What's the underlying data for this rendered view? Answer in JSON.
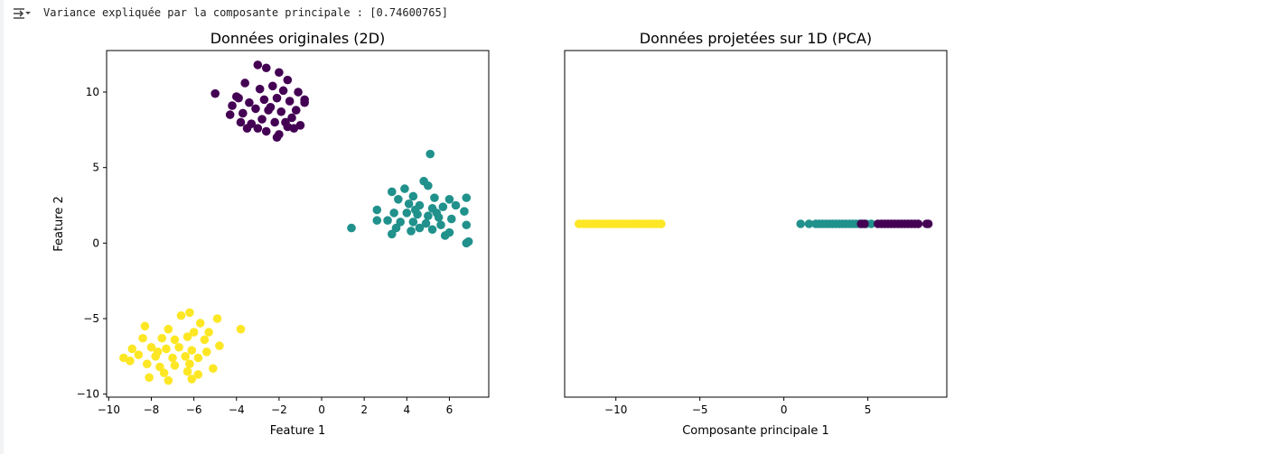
{
  "output": {
    "icon": "output-collapse-icon",
    "text": "Variance expliquée par la composante principale : [0.74600765]"
  },
  "colors": {
    "purple": "#440154",
    "teal": "#21918c",
    "yellow": "#fde725"
  },
  "chart_data": [
    {
      "type": "scatter",
      "title": "Données originales (2D)",
      "xlabel": "Feature 1",
      "ylabel": "Feature 2",
      "xlim": [
        -10.1,
        7.85
      ],
      "ylim": [
        -10.2,
        12.75
      ],
      "xticks": [
        "−10",
        "−8",
        "−6",
        "−4",
        "−2",
        "0",
        "2",
        "4",
        "6"
      ],
      "xtick_values": [
        -10,
        -8,
        -6,
        -4,
        -2,
        0,
        2,
        4,
        6
      ],
      "yticks": [
        "−10",
        "−5",
        "0",
        "5",
        "10"
      ],
      "ytick_values": [
        -10,
        -5,
        0,
        5,
        10
      ],
      "grid": false,
      "series": [
        {
          "color": "purple",
          "points": [
            [
              -5.0,
              9.9
            ],
            [
              -3.0,
              11.8
            ],
            [
              -2.6,
              11.6
            ],
            [
              -2.0,
              11.3
            ],
            [
              -1.6,
              10.8
            ],
            [
              -3.6,
              10.6
            ],
            [
              -2.9,
              10.2
            ],
            [
              -2.3,
              10.4
            ],
            [
              -1.8,
              10.1
            ],
            [
              -1.1,
              10.0
            ],
            [
              -0.8,
              9.5
            ],
            [
              -0.8,
              9.3
            ],
            [
              -3.9,
              9.6
            ],
            [
              -4.2,
              9.1
            ],
            [
              -3.4,
              9.3
            ],
            [
              -2.7,
              9.5
            ],
            [
              -2.1,
              9.6
            ],
            [
              -1.5,
              9.4
            ],
            [
              -1.2,
              8.8
            ],
            [
              -4.3,
              8.5
            ],
            [
              -3.7,
              8.6
            ],
            [
              -3.1,
              8.9
            ],
            [
              -2.5,
              8.8
            ],
            [
              -1.9,
              8.7
            ],
            [
              -1.4,
              8.3
            ],
            [
              -3.8,
              8.0
            ],
            [
              -3.3,
              7.9
            ],
            [
              -2.8,
              8.2
            ],
            [
              -2.2,
              8.0
            ],
            [
              -1.7,
              8.0
            ],
            [
              -1.3,
              7.6
            ],
            [
              -3.5,
              7.6
            ],
            [
              -2.6,
              7.4
            ],
            [
              -2.1,
              7.0
            ],
            [
              -2.0,
              7.2
            ],
            [
              -1.6,
              7.7
            ],
            [
              -4.0,
              9.7
            ],
            [
              -2.4,
              9.0
            ],
            [
              -1.0,
              7.8
            ],
            [
              -3.0,
              7.6
            ]
          ]
        },
        {
          "color": "teal",
          "points": [
            [
              1.4,
              1.0
            ],
            [
              5.1,
              5.9
            ],
            [
              6.9,
              0.1
            ],
            [
              6.8,
              0.0
            ],
            [
              6.8,
              3.0
            ],
            [
              4.8,
              4.1
            ],
            [
              5.0,
              3.8
            ],
            [
              3.3,
              3.4
            ],
            [
              3.9,
              3.6
            ],
            [
              4.3,
              3.1
            ],
            [
              5.3,
              3.0
            ],
            [
              6.0,
              2.9
            ],
            [
              6.3,
              2.5
            ],
            [
              3.6,
              2.9
            ],
            [
              4.1,
              2.6
            ],
            [
              4.6,
              2.5
            ],
            [
              5.2,
              2.3
            ],
            [
              5.7,
              2.4
            ],
            [
              6.7,
              2.1
            ],
            [
              2.6,
              2.2
            ],
            [
              3.4,
              2.0
            ],
            [
              4.0,
              2.0
            ],
            [
              4.5,
              1.9
            ],
            [
              5.0,
              1.8
            ],
            [
              5.5,
              1.7
            ],
            [
              6.1,
              1.6
            ],
            [
              3.1,
              1.5
            ],
            [
              3.7,
              1.4
            ],
            [
              4.3,
              1.4
            ],
            [
              4.9,
              1.3
            ],
            [
              5.6,
              1.2
            ],
            [
              6.8,
              1.2
            ],
            [
              2.6,
              1.5
            ],
            [
              3.5,
              1.0
            ],
            [
              4.2,
              0.8
            ],
            [
              4.6,
              1.0
            ],
            [
              5.2,
              0.9
            ],
            [
              6.0,
              0.7
            ],
            [
              3.3,
              0.6
            ],
            [
              5.8,
              0.5
            ],
            [
              4.4,
              2.2
            ],
            [
              5.4,
              2.0
            ]
          ]
        },
        {
          "color": "yellow",
          "points": [
            [
              -9.3,
              -7.6
            ],
            [
              -3.8,
              -5.7
            ],
            [
              -4.9,
              -5.0
            ],
            [
              -6.2,
              -4.6
            ],
            [
              -6.6,
              -4.8
            ],
            [
              -5.7,
              -5.3
            ],
            [
              -8.3,
              -5.5
            ],
            [
              -7.2,
              -5.7
            ],
            [
              -6.0,
              -5.9
            ],
            [
              -5.3,
              -5.9
            ],
            [
              -8.4,
              -6.3
            ],
            [
              -7.5,
              -6.3
            ],
            [
              -6.9,
              -6.4
            ],
            [
              -6.3,
              -6.2
            ],
            [
              -5.5,
              -6.4
            ],
            [
              -4.8,
              -6.8
            ],
            [
              -8.0,
              -6.9
            ],
            [
              -7.3,
              -7.0
            ],
            [
              -6.7,
              -6.9
            ],
            [
              -6.1,
              -7.1
            ],
            [
              -5.4,
              -7.2
            ],
            [
              -8.9,
              -7.0
            ],
            [
              -8.6,
              -7.4
            ],
            [
              -7.8,
              -7.5
            ],
            [
              -7.0,
              -7.6
            ],
            [
              -6.4,
              -7.5
            ],
            [
              -5.8,
              -7.6
            ],
            [
              -8.2,
              -8.0
            ],
            [
              -7.6,
              -8.2
            ],
            [
              -6.9,
              -8.1
            ],
            [
              -6.2,
              -8.0
            ],
            [
              -5.1,
              -8.3
            ],
            [
              -7.4,
              -8.6
            ],
            [
              -6.3,
              -8.5
            ],
            [
              -5.8,
              -8.7
            ],
            [
              -8.1,
              -8.9
            ],
            [
              -7.2,
              -9.1
            ],
            [
              -6.1,
              -9.0
            ],
            [
              -9.0,
              -7.8
            ],
            [
              -7.7,
              -7.2
            ]
          ]
        }
      ]
    },
    {
      "type": "scatter",
      "title": "Données projetées sur 1D (PCA)",
      "xlabel": "Composante principale 1",
      "ylabel": "",
      "xlim": [
        -13.05,
        9.7
      ],
      "ylim": [
        -1,
        1
      ],
      "xticks": [
        "−10",
        "−5",
        "0",
        "5"
      ],
      "xtick_values": [
        -10,
        -5,
        0,
        5
      ],
      "yticks": [],
      "grid": false,
      "series": [
        {
          "color": "yellow",
          "x": [
            -12.2,
            -12.0,
            -11.8,
            -11.6,
            -11.4,
            -11.2,
            -11.0,
            -10.8,
            -10.6,
            -10.4,
            -10.2,
            -10.0,
            -9.8,
            -9.6,
            -9.4,
            -9.2,
            -9.0,
            -8.8,
            -8.6,
            -8.4,
            -8.2,
            -8.0,
            -7.8,
            -7.6,
            -7.4,
            -7.3
          ]
        },
        {
          "color": "teal",
          "x": [
            1.0,
            1.5,
            1.9,
            2.1,
            2.3,
            2.5,
            2.7,
            2.9,
            3.1,
            3.3,
            3.5,
            3.7,
            3.9,
            4.1,
            4.3,
            4.5,
            4.7,
            4.9,
            5.2
          ]
        },
        {
          "color": "purple",
          "x": [
            4.6,
            4.8,
            5.6,
            5.8,
            6.0,
            6.2,
            6.4,
            6.6,
            6.8,
            7.0,
            7.2,
            7.4,
            7.6,
            7.8,
            8.0,
            8.5,
            8.6
          ]
        }
      ]
    }
  ]
}
